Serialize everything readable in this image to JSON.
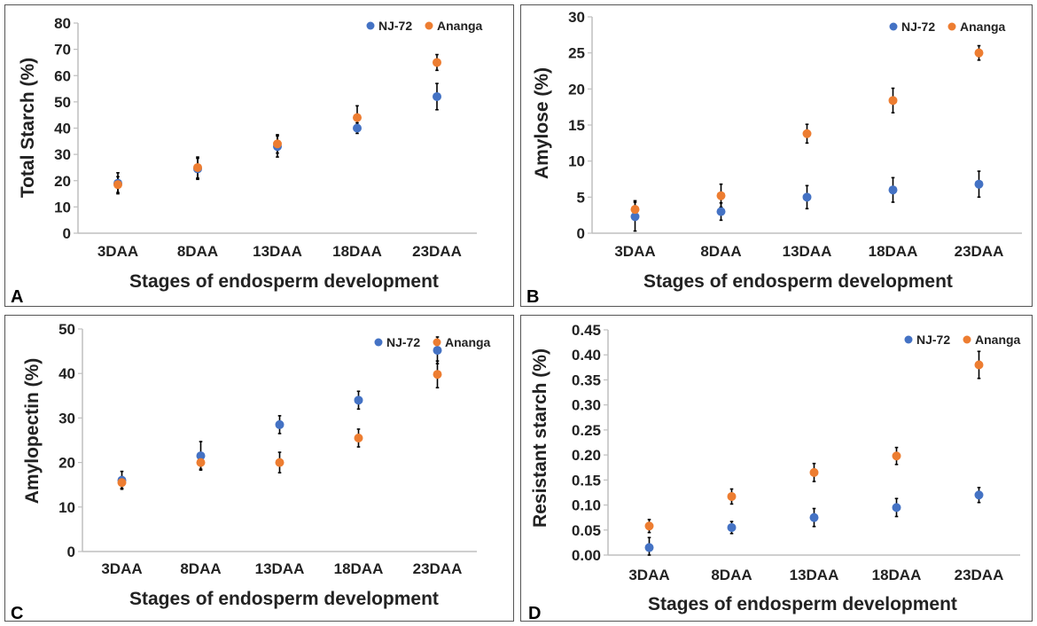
{
  "colors": {
    "nj72": "#4472c4",
    "ananga": "#ed7d31",
    "axis": "#bfbfbf",
    "errorbar": "#000000",
    "text": "#222222"
  },
  "chart_data": [
    {
      "type": "scatter",
      "panel_label": "A",
      "categories": [
        "3DAA",
        "8DAA",
        "13DAA",
        "18DAA",
        "23DAA"
      ],
      "ylabel": "Total Starch (%)",
      "xlabel": "Stages of endosperm development",
      "ylim": [
        0,
        80
      ],
      "yticks": [
        "0",
        "10",
        "20",
        "30",
        "40",
        "50",
        "60",
        "70",
        "80"
      ],
      "legend_position": "top-right",
      "series": [
        {
          "name": "NJ-72",
          "color": "#4472c4",
          "values": [
            19,
            24.5,
            33,
            40,
            52
          ],
          "errors": [
            4,
            4,
            4,
            2,
            5
          ]
        },
        {
          "name": "Ananga",
          "color": "#ed7d31",
          "values": [
            18.5,
            25,
            34,
            44,
            65
          ],
          "errors": [
            3,
            4,
            3.5,
            4.5,
            3
          ]
        }
      ]
    },
    {
      "type": "scatter",
      "panel_label": "B",
      "categories": [
        "3DAA",
        "8DAA",
        "13DAA",
        "18DAA",
        "23DAA"
      ],
      "ylabel": "Amylose (%)",
      "xlabel": "Stages of endosperm development",
      "ylim": [
        0,
        30
      ],
      "yticks": [
        "0",
        "5",
        "10",
        "15",
        "20",
        "25",
        "30"
      ],
      "legend_position": "top-right",
      "series": [
        {
          "name": "NJ-72",
          "color": "#4472c4",
          "values": [
            2.3,
            3,
            5,
            6,
            6.8
          ],
          "errors": [
            2,
            1.2,
            1.6,
            1.7,
            1.8
          ]
        },
        {
          "name": "Ananga",
          "color": "#ed7d31",
          "values": [
            3.3,
            5.2,
            13.8,
            18.4,
            25
          ],
          "errors": [
            1.2,
            1.6,
            1.3,
            1.7,
            1
          ]
        }
      ]
    },
    {
      "type": "scatter",
      "panel_label": "C",
      "categories": [
        "3DAA",
        "8DAA",
        "13DAA",
        "18DAA",
        "23DAA"
      ],
      "ylabel": "Amylopectin (%)",
      "xlabel": "Stages of endosperm development",
      "ylim": [
        0,
        50
      ],
      "yticks": [
        "0",
        "10",
        "20",
        "30",
        "40",
        "50"
      ],
      "legend_position": "top-right",
      "series": [
        {
          "name": "NJ-72",
          "color": "#4472c4",
          "values": [
            16,
            21.5,
            28.5,
            34,
            45.2
          ],
          "errors": [
            2,
            3.2,
            2,
            2,
            3
          ]
        },
        {
          "name": "Ananga",
          "color": "#ed7d31",
          "values": [
            15.5,
            20,
            20,
            25.5,
            39.8
          ],
          "errors": [
            1.3,
            1.5,
            2.3,
            2,
            3
          ]
        }
      ]
    },
    {
      "type": "scatter",
      "panel_label": "D",
      "categories": [
        "3DAA",
        "8DAA",
        "13DAA",
        "18DAA",
        "23DAA"
      ],
      "ylabel": "Resistant starch (%)",
      "xlabel": "Stages of endosperm development",
      "ylim": [
        0,
        0.45
      ],
      "yticks": [
        "0.00",
        "0.05",
        "0.10",
        "0.15",
        "0.20",
        "0.25",
        "0.30",
        "0.35",
        "0.40",
        "0.45"
      ],
      "legend_position": "top-right",
      "series": [
        {
          "name": "NJ-72",
          "color": "#4472c4",
          "values": [
            0.015,
            0.055,
            0.075,
            0.095,
            0.12
          ],
          "errors": [
            0.02,
            0.012,
            0.018,
            0.018,
            0.015
          ]
        },
        {
          "name": "Ananga",
          "color": "#ed7d31",
          "values": [
            0.058,
            0.117,
            0.165,
            0.198,
            0.38
          ],
          "errors": [
            0.013,
            0.015,
            0.018,
            0.017,
            0.027
          ]
        }
      ]
    }
  ]
}
